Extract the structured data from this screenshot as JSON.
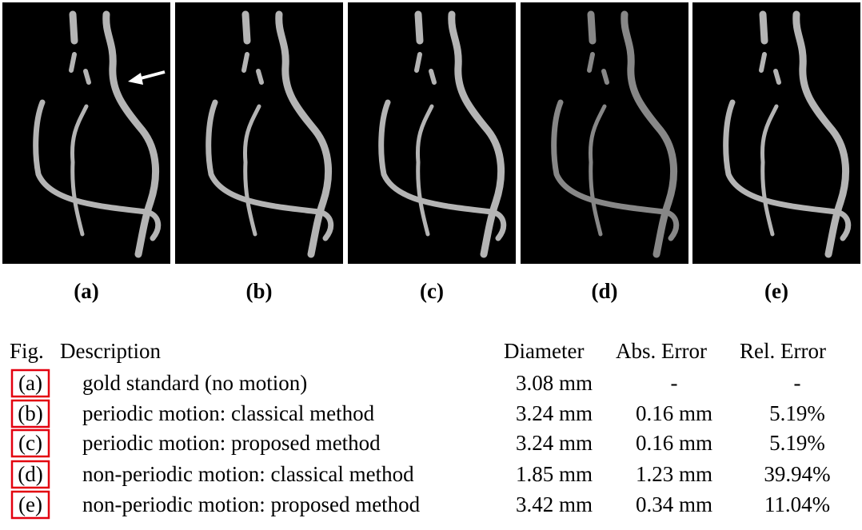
{
  "figure": {
    "panels": [
      "(a)",
      "(b)",
      "(c)",
      "(d)",
      "(e)"
    ]
  },
  "table": {
    "header": [
      "Fig.",
      "Description",
      "Diameter",
      "Abs. Error",
      "Rel. Error"
    ],
    "rows": [
      [
        "(a)",
        "gold standard (no motion)",
        "3.08 mm",
        "-",
        "-"
      ],
      [
        "(b)",
        "periodic motion: classical method",
        "3.24 mm",
        "0.16 mm",
        "5.19%"
      ],
      [
        "(c)",
        "periodic motion: proposed method",
        "3.24 mm",
        "0.16 mm",
        "5.19%"
      ],
      [
        "(d)",
        "non-periodic motion: classical method",
        "1.85 mm",
        "1.23 mm",
        "39.94%"
      ],
      [
        "(e)",
        "non-periodic motion: proposed method",
        "3.42 mm",
        "0.34 mm",
        "11.04%"
      ]
    ]
  }
}
